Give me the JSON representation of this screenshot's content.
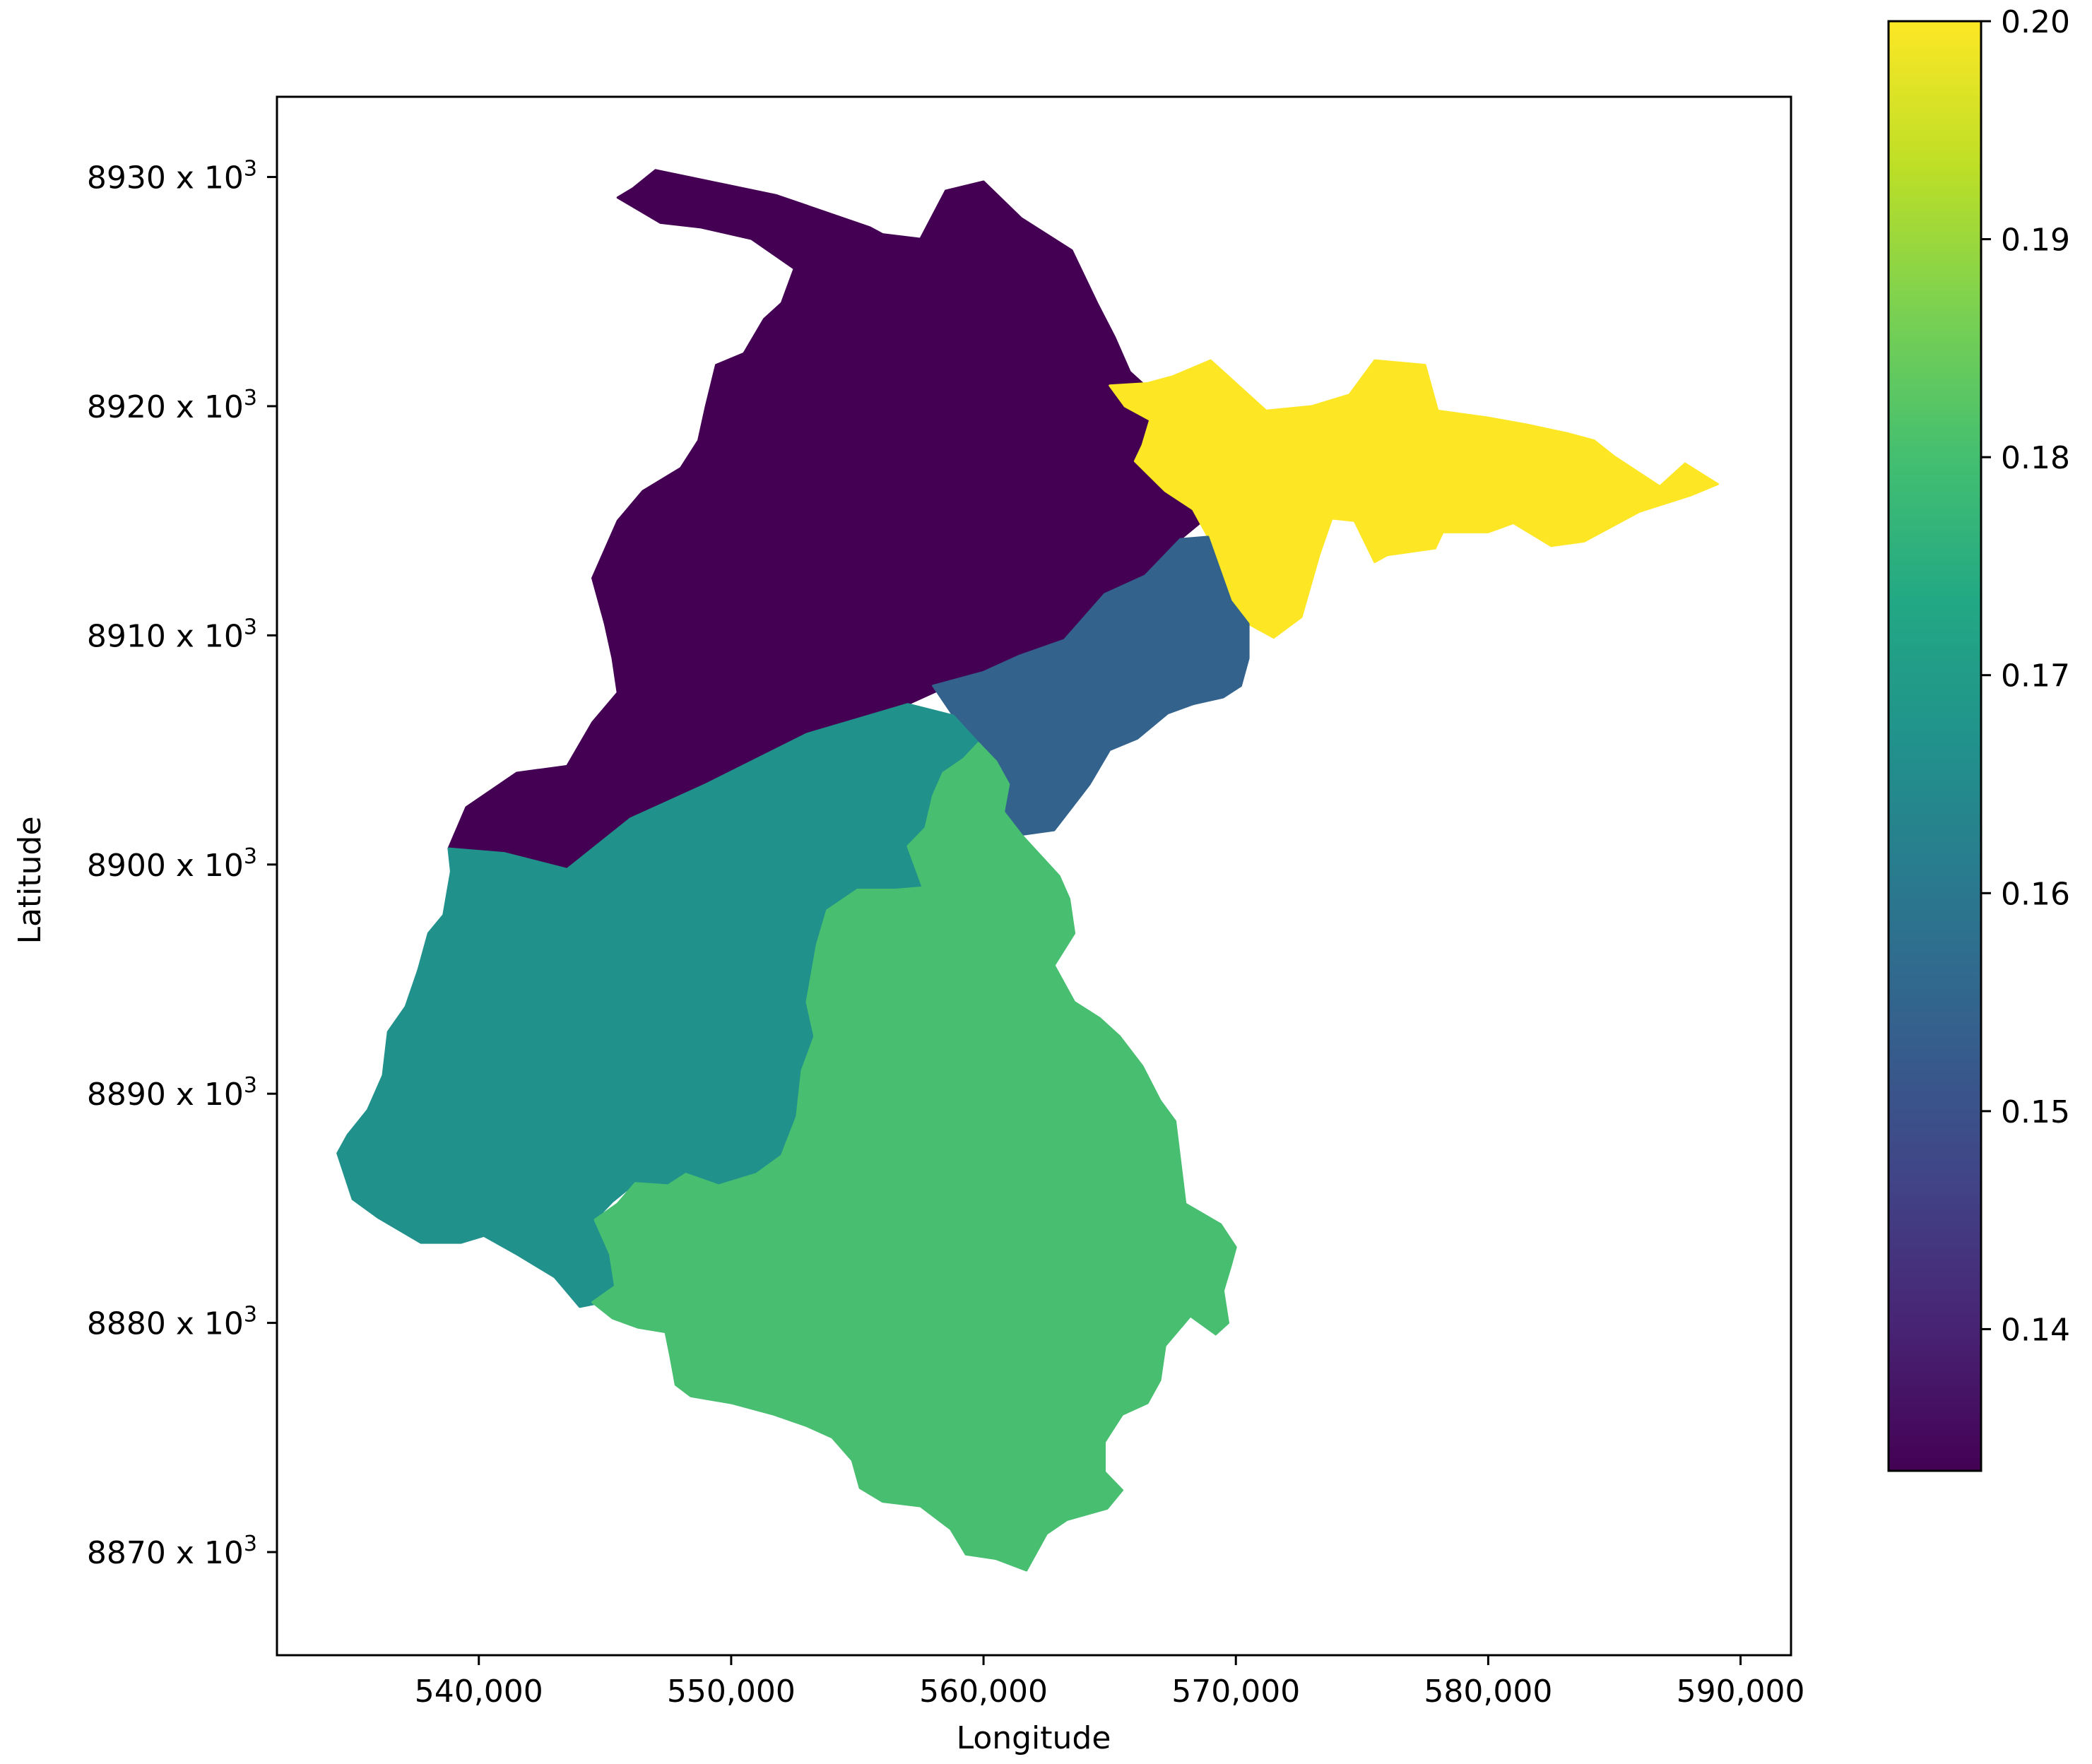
{
  "chart_data": {
    "type": "choropleth",
    "title": "",
    "xlabel": "Longitude",
    "ylabel": "Latitude",
    "xlim": [
      532000,
      592000
    ],
    "ylim": [
      8865500,
      8933500
    ],
    "x_ticks": [
      540000,
      550000,
      560000,
      570000,
      580000,
      590000
    ],
    "x_tick_labels": [
      "540,000",
      "550,000",
      "560,000",
      "570,000",
      "580,000",
      "590,000"
    ],
    "y_ticks": [
      8870000,
      8880000,
      8890000,
      8900000,
      8910000,
      8920000,
      8930000
    ],
    "y_tick_labels": [
      {
        "mantissa": "8870 x 10",
        "exp": "3"
      },
      {
        "mantissa": "8880 x 10",
        "exp": "3"
      },
      {
        "mantissa": "8890 x 10",
        "exp": "3"
      },
      {
        "mantissa": "8900 x 10",
        "exp": "3"
      },
      {
        "mantissa": "8910 x 10",
        "exp": "3"
      },
      {
        "mantissa": "8920 x 10",
        "exp": "3"
      },
      {
        "mantissa": "8930 x 10",
        "exp": "3"
      }
    ],
    "grid": false,
    "colormap": "viridis",
    "colorbar": {
      "range": [
        0.1335,
        0.2
      ],
      "ticks": [
        0.14,
        0.15,
        0.16,
        0.17,
        0.18,
        0.19,
        0.2
      ],
      "tick_labels": [
        "0.14",
        "0.15",
        "0.16",
        "0.17",
        "0.18",
        "0.19",
        "0.20"
      ],
      "placement": "right"
    },
    "regions": [
      {
        "value": 0.1335,
        "color": "#440154",
        "outline": [
          [
            547000,
            8930300
          ],
          [
            551800,
            8929200
          ],
          [
            555500,
            8927800
          ],
          [
            556000,
            8927500
          ],
          [
            557500,
            8927300
          ],
          [
            558500,
            8929400
          ],
          [
            560000,
            8929800
          ],
          [
            561500,
            8928200
          ],
          [
            563500,
            8926800
          ],
          [
            564500,
            8924500
          ],
          [
            565200,
            8923000
          ],
          [
            565800,
            8921500
          ],
          [
            567200,
            8920100
          ],
          [
            567700,
            8918500
          ],
          [
            567300,
            8917300
          ],
          [
            567600,
            8916400
          ],
          [
            568900,
            8915200
          ],
          [
            567800,
            8914200
          ],
          [
            566400,
            8912600
          ],
          [
            564800,
            8911800
          ],
          [
            563200,
            8909800
          ],
          [
            561400,
            8909100
          ],
          [
            560000,
            8908400
          ],
          [
            558200,
            8907600
          ],
          [
            557000,
            8907000
          ],
          [
            553000,
            8905700
          ],
          [
            549000,
            8903500
          ],
          [
            546000,
            8902000
          ],
          [
            543500,
            8899800
          ],
          [
            541000,
            8900500
          ],
          [
            538800,
            8900700
          ],
          [
            539500,
            8902500
          ],
          [
            541500,
            8904000
          ],
          [
            543500,
            8904300
          ],
          [
            544500,
            8906200
          ],
          [
            545500,
            8907500
          ],
          [
            545300,
            8909000
          ],
          [
            545000,
            8910500
          ],
          [
            544500,
            8912500
          ],
          [
            545500,
            8915000
          ],
          [
            546500,
            8916300
          ],
          [
            548000,
            8917300
          ],
          [
            548700,
            8918500
          ],
          [
            549000,
            8920000
          ],
          [
            549400,
            8921800
          ],
          [
            550500,
            8922300
          ],
          [
            551300,
            8923800
          ],
          [
            552000,
            8924500
          ],
          [
            552500,
            8926000
          ],
          [
            550800,
            8927300
          ],
          [
            548800,
            8927800
          ],
          [
            547200,
            8928000
          ],
          [
            545500,
            8929100
          ],
          [
            546100,
            8929500
          ]
        ]
      },
      {
        "value": 0.2,
        "color": "#fde725",
        "outline": [
          [
            565000,
            8920900
          ],
          [
            566500,
            8921000
          ],
          [
            567500,
            8921300
          ],
          [
            569000,
            8922000
          ],
          [
            571200,
            8919800
          ],
          [
            573000,
            8920000
          ],
          [
            574500,
            8920500
          ],
          [
            575500,
            8922000
          ],
          [
            577500,
            8921800
          ],
          [
            578000,
            8919800
          ],
          [
            580000,
            8919500
          ],
          [
            581500,
            8919200
          ],
          [
            583200,
            8918800
          ],
          [
            584200,
            8918500
          ],
          [
            585000,
            8917800
          ],
          [
            586800,
            8916500
          ],
          [
            587800,
            8917500
          ],
          [
            589100,
            8916600
          ],
          [
            588000,
            8916100
          ],
          [
            586000,
            8915400
          ],
          [
            583800,
            8914100
          ],
          [
            582500,
            8913900
          ],
          [
            581000,
            8914900
          ],
          [
            580000,
            8914500
          ],
          [
            578200,
            8914500
          ],
          [
            577900,
            8913800
          ],
          [
            576000,
            8913500
          ],
          [
            575500,
            8913200
          ],
          [
            574700,
            8915000
          ],
          [
            573800,
            8915100
          ],
          [
            573300,
            8913500
          ],
          [
            572600,
            8910800
          ],
          [
            571500,
            8909900
          ],
          [
            570500,
            8910500
          ],
          [
            569800,
            8911500
          ],
          [
            568900,
            8914300
          ],
          [
            568300,
            8915500
          ],
          [
            567200,
            8916300
          ],
          [
            566000,
            8917600
          ],
          [
            566300,
            8918300
          ],
          [
            566600,
            8919400
          ],
          [
            565600,
            8920000
          ]
        ]
      },
      {
        "value": 0.1555,
        "color": "#33638d",
        "outline": [
          [
            568900,
            8914300
          ],
          [
            569800,
            8911500
          ],
          [
            570500,
            8910500
          ],
          [
            570500,
            8909000
          ],
          [
            570200,
            8907800
          ],
          [
            569500,
            8907300
          ],
          [
            568300,
            8907000
          ],
          [
            567300,
            8906600
          ],
          [
            566100,
            8905500
          ],
          [
            565000,
            8905000
          ],
          [
            564200,
            8903500
          ],
          [
            563500,
            8902500
          ],
          [
            562800,
            8901500
          ],
          [
            561500,
            8901300
          ],
          [
            560800,
            8902300
          ],
          [
            561000,
            8903500
          ],
          [
            560500,
            8904500
          ],
          [
            559800,
            8905300
          ],
          [
            558800,
            8906500
          ],
          [
            558000,
            8907800
          ],
          [
            560000,
            8908400
          ],
          [
            561400,
            8909100
          ],
          [
            563200,
            8909800
          ],
          [
            564800,
            8911800
          ],
          [
            566400,
            8912600
          ],
          [
            567800,
            8914200
          ]
        ]
      },
      {
        "value": 0.169,
        "color": "#21918c",
        "outline": [
          [
            538800,
            8900700
          ],
          [
            541000,
            8900500
          ],
          [
            543500,
            8899800
          ],
          [
            546000,
            8902000
          ],
          [
            549000,
            8903500
          ],
          [
            553000,
            8905700
          ],
          [
            557000,
            8907000
          ],
          [
            558800,
            8906500
          ],
          [
            559800,
            8905300
          ],
          [
            559200,
            8904600
          ],
          [
            558400,
            8904000
          ],
          [
            558000,
            8903000
          ],
          [
            557700,
            8901600
          ],
          [
            557000,
            8900800
          ],
          [
            557600,
            8899000
          ],
          [
            556500,
            8898900
          ],
          [
            555000,
            8898900
          ],
          [
            553800,
            8898000
          ],
          [
            553400,
            8896500
          ],
          [
            553000,
            8894000
          ],
          [
            553300,
            8892500
          ],
          [
            552800,
            8891000
          ],
          [
            552600,
            8889000
          ],
          [
            552000,
            8887300
          ],
          [
            551000,
            8886500
          ],
          [
            549500,
            8886000
          ],
          [
            548200,
            8886500
          ],
          [
            547500,
            8886000
          ],
          [
            546200,
            8886100
          ],
          [
            545300,
            8885300
          ],
          [
            544600,
            8884500
          ],
          [
            545300,
            8883000
          ],
          [
            545500,
            8881600
          ],
          [
            544900,
            8880900
          ],
          [
            544000,
            8880700
          ],
          [
            543000,
            8882000
          ],
          [
            541500,
            8883000
          ],
          [
            540200,
            8883800
          ],
          [
            539300,
            8883500
          ],
          [
            538500,
            8883500
          ],
          [
            537700,
            8883500
          ],
          [
            536000,
            8884600
          ],
          [
            535000,
            8885400
          ],
          [
            534400,
            8887400
          ],
          [
            534800,
            8888200
          ],
          [
            535600,
            8889300
          ],
          [
            536200,
            8890800
          ],
          [
            536400,
            8892700
          ],
          [
            537100,
            8893800
          ],
          [
            537600,
            8895400
          ],
          [
            538000,
            8897000
          ],
          [
            538600,
            8897800
          ],
          [
            538900,
            8899700
          ]
        ]
      },
      {
        "value": 0.1785,
        "color": "#48bf70",
        "outline": [
          [
            559800,
            8905300
          ],
          [
            560500,
            8904500
          ],
          [
            561000,
            8903500
          ],
          [
            560800,
            8902300
          ],
          [
            561500,
            8901300
          ],
          [
            563000,
            8899500
          ],
          [
            563400,
            8898500
          ],
          [
            563600,
            8897000
          ],
          [
            562800,
            8895600
          ],
          [
            563600,
            8894000
          ],
          [
            564600,
            8893300
          ],
          [
            565400,
            8892500
          ],
          [
            566300,
            8891200
          ],
          [
            567000,
            8889700
          ],
          [
            567600,
            8888800
          ],
          [
            567800,
            8887000
          ],
          [
            568000,
            8885200
          ],
          [
            569400,
            8884300
          ],
          [
            570000,
            8883300
          ],
          [
            569800,
            8882500
          ],
          [
            569500,
            8881400
          ],
          [
            569700,
            8880000
          ],
          [
            569200,
            8879500
          ],
          [
            568200,
            8880300
          ],
          [
            567200,
            8879000
          ],
          [
            567000,
            8877500
          ],
          [
            566500,
            8876500
          ],
          [
            565500,
            8876000
          ],
          [
            564800,
            8874800
          ],
          [
            564800,
            8873500
          ],
          [
            565500,
            8872700
          ],
          [
            564900,
            8871900
          ],
          [
            563300,
            8871400
          ],
          [
            562500,
            8870800
          ],
          [
            561700,
            8869200
          ],
          [
            560500,
            8869700
          ],
          [
            559300,
            8869900
          ],
          [
            558700,
            8871000
          ],
          [
            557500,
            8872000
          ],
          [
            556000,
            8872200
          ],
          [
            555100,
            8872800
          ],
          [
            554800,
            8874000
          ],
          [
            554000,
            8875000
          ],
          [
            553000,
            8875500
          ],
          [
            551700,
            8876000
          ],
          [
            550000,
            8876500
          ],
          [
            548400,
            8876800
          ],
          [
            547800,
            8877300
          ],
          [
            547600,
            8878500
          ],
          [
            547400,
            8879600
          ],
          [
            546300,
            8879800
          ],
          [
            545300,
            8880200
          ],
          [
            544500,
            8880900
          ],
          [
            545400,
            8881600
          ],
          [
            545200,
            8883000
          ],
          [
            544600,
            8884500
          ],
          [
            545500,
            8885200
          ],
          [
            546200,
            8886100
          ],
          [
            547500,
            8886000
          ],
          [
            548200,
            8886500
          ],
          [
            549500,
            8886000
          ],
          [
            551000,
            8886500
          ],
          [
            552000,
            8887300
          ],
          [
            552600,
            8889000
          ],
          [
            552800,
            8891000
          ],
          [
            553300,
            8892500
          ],
          [
            553000,
            8894000
          ],
          [
            553400,
            8896500
          ],
          [
            553800,
            8898000
          ],
          [
            555000,
            8898900
          ],
          [
            556500,
            8898900
          ],
          [
            557600,
            8899000
          ],
          [
            557000,
            8900800
          ],
          [
            557700,
            8901600
          ],
          [
            558000,
            8903000
          ],
          [
            558400,
            8904000
          ],
          [
            559200,
            8904600
          ]
        ]
      }
    ]
  }
}
